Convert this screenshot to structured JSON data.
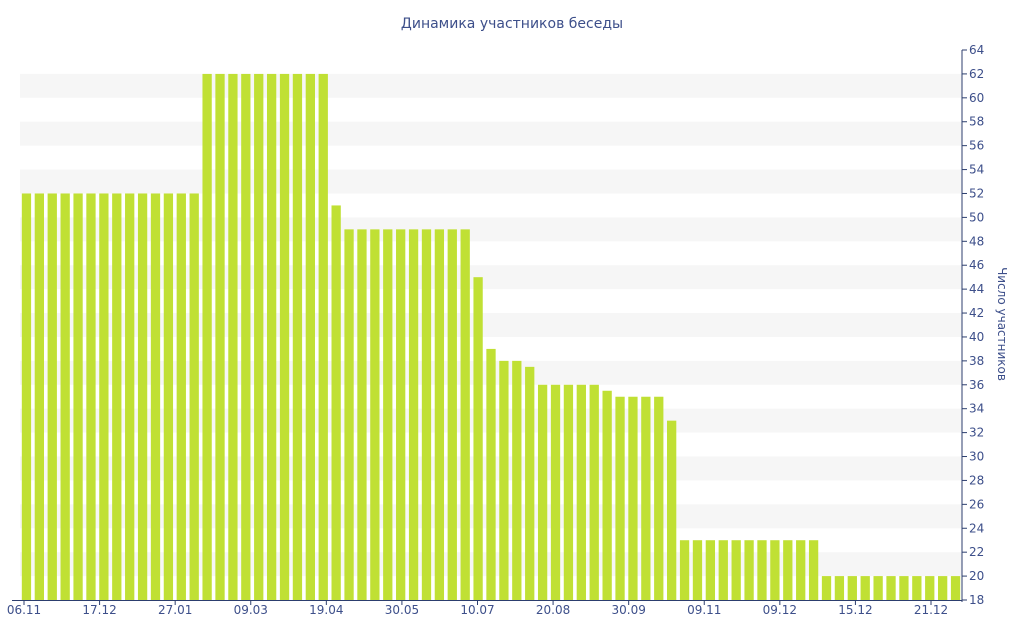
{
  "chart_data": {
    "type": "bar",
    "title": "Динамика участников беседы",
    "ylabel": "Число участников",
    "xlabel": "",
    "ylim": [
      18,
      64
    ],
    "yticks": [
      18,
      20,
      22,
      24,
      26,
      28,
      30,
      32,
      34,
      36,
      38,
      40,
      42,
      44,
      46,
      48,
      50,
      52,
      54,
      56,
      58,
      60,
      62,
      64
    ],
    "xtick_labels": [
      "06.11",
      "17.12",
      "27.01",
      "09.03",
      "19.04",
      "30.05",
      "10.07",
      "20.08",
      "30.09",
      "09.11",
      "09.12",
      "15.12",
      "21.12"
    ],
    "grid": "horizontal bands",
    "colors": {
      "bar": "#c0e034",
      "band": "#f6f6f6",
      "text": "#3d4f8a",
      "axis": "#2c3e6e"
    },
    "values": [
      52,
      52,
      52,
      52,
      52,
      52,
      52,
      52,
      52,
      52,
      52,
      52,
      52,
      52,
      62,
      62,
      62,
      62,
      62,
      62,
      62,
      62,
      62,
      62,
      51,
      49,
      49,
      49,
      49,
      49,
      49,
      49,
      49,
      49,
      49,
      45,
      39,
      38,
      38,
      37.5,
      36,
      36,
      36,
      36,
      36,
      35.5,
      35,
      35,
      35,
      35,
      33,
      23,
      23,
      23,
      23,
      23,
      23,
      23,
      23,
      23,
      23,
      23,
      20,
      20,
      20,
      20,
      20,
      20,
      20,
      20,
      20,
      20,
      20
    ]
  }
}
